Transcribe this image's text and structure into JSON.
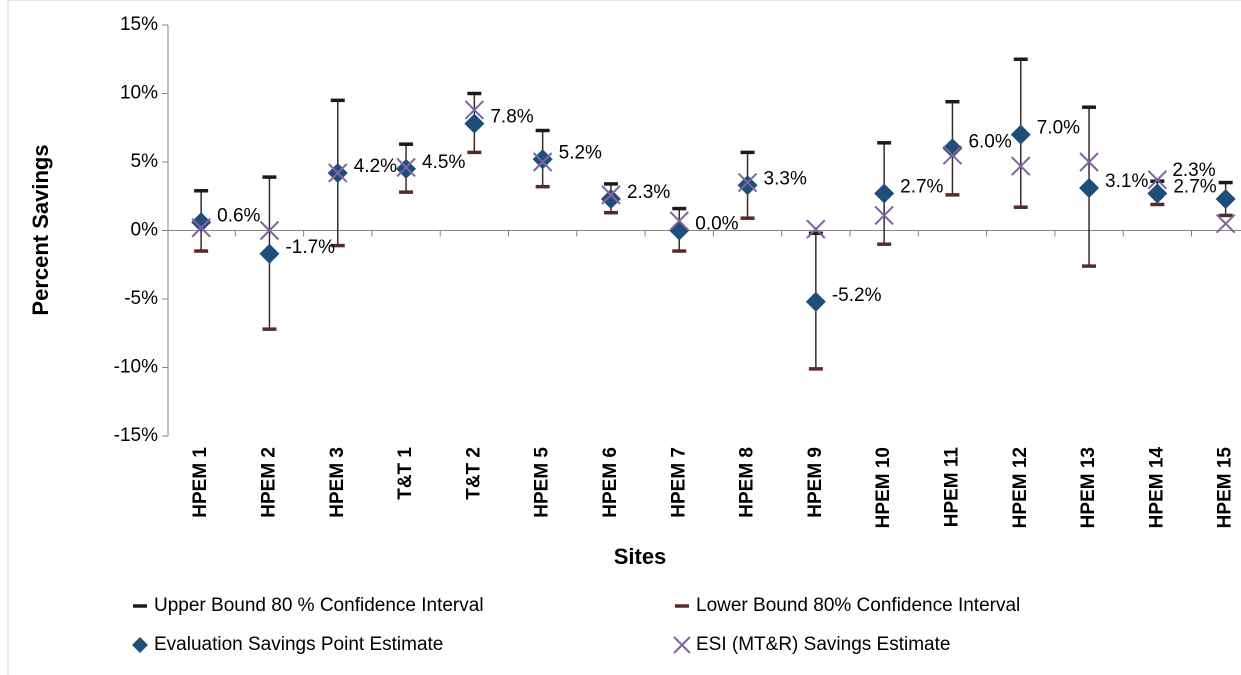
{
  "chart_data": {
    "type": "errorbar",
    "y_label": "Percent Savings",
    "x_label": "Sites",
    "categories": [
      "HPEM 1",
      "HPEM 2",
      "HPEM 3",
      "T&T 1",
      "T&T 2",
      "HPEM 5",
      "HPEM 6",
      "HPEM 7",
      "HPEM 8",
      "HPEM 9",
      "HPEM 10",
      "HPEM 11",
      "HPEM 12",
      "HPEM 13",
      "HPEM 14",
      "HPEM 15"
    ],
    "ylim": [
      -15,
      15
    ],
    "yticks": [
      {
        "value": -15,
        "label": "-15%"
      },
      {
        "value": -10,
        "label": "-10%"
      },
      {
        "value": -5,
        "label": "-5%"
      },
      {
        "value": 0,
        "label": "0%"
      },
      {
        "value": 5,
        "label": "5%"
      },
      {
        "value": 10,
        "label": "10%"
      },
      {
        "value": 15,
        "label": "15%"
      }
    ],
    "series": [
      {
        "name": "Upper Bound 80 % Confidence Interval",
        "color": "#1a1a1a",
        "marker": "dash",
        "values": [
          2.9,
          3.9,
          9.5,
          6.3,
          10.0,
          7.3,
          3.4,
          1.6,
          5.7,
          -0.2,
          6.4,
          9.4,
          12.5,
          9.0,
          3.6,
          3.5
        ]
      },
      {
        "name": "Lower Bound 80% Confidence Interval",
        "color": "#5a2a2a",
        "marker": "dash",
        "values": [
          -1.5,
          -7.2,
          -1.1,
          2.8,
          5.7,
          3.2,
          1.3,
          -1.5,
          0.9,
          -10.1,
          -1.0,
          2.6,
          1.7,
          -2.6,
          1.9,
          1.1
        ]
      },
      {
        "name": "Evaluation Savings Point Estimate",
        "color": "#1f4e79",
        "marker": "diamond",
        "values": [
          0.6,
          -1.7,
          4.2,
          4.5,
          7.8,
          5.2,
          2.3,
          0.0,
          3.3,
          -5.2,
          2.7,
          6.0,
          7.0,
          3.1,
          2.7,
          2.3
        ],
        "value_labels": [
          "0.6%",
          "-1.7%",
          "4.2%",
          "4.5%",
          "7.8%",
          "5.2%",
          "2.3%",
          "0.0%",
          "3.3%",
          "-5.2%",
          "2.7%",
          "6.0%",
          "7.0%",
          "3.1%",
          "2.7%",
          "2.3%"
        ]
      },
      {
        "name": "ESI (MT&R) Savings Estimate",
        "color": "#8064a2",
        "marker": "x",
        "values": [
          0.2,
          0.0,
          4.2,
          4.6,
          8.8,
          5.0,
          2.6,
          0.7,
          3.5,
          0.1,
          1.1,
          5.5,
          4.7,
          5.0,
          3.7,
          0.5
        ]
      }
    ]
  }
}
